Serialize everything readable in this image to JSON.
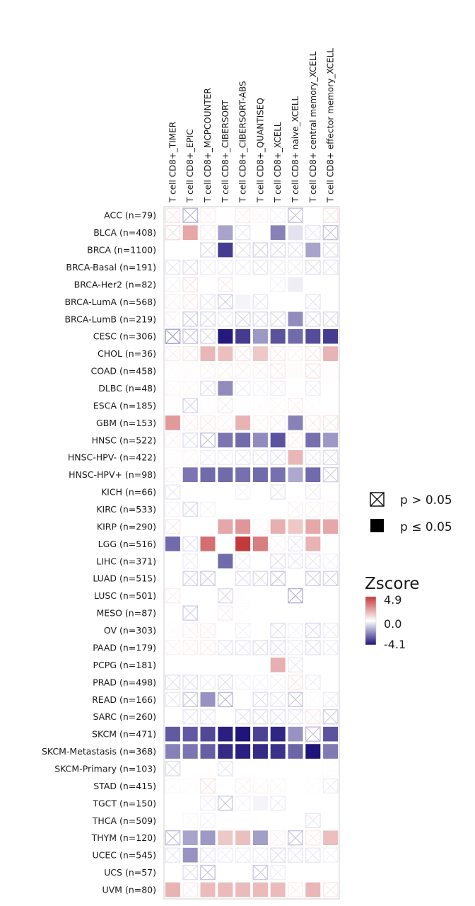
{
  "chart_data": {
    "type": "heatmap",
    "columns": [
      "T cell CD8+_TIMER",
      "T cell CD8+_EPIC",
      "T cell CD8+_MCPCOUNTER",
      "T cell CD8+_CIBERSORT",
      "T cell CD8+_CIBERSORT-ABS",
      "T cell CD8+_QUANTISEQ",
      "T cell CD8+_XCELL",
      "T cell CD8+ naive_XCELL",
      "T cell CD8+ central memory_XCELL",
      "T cell CD8+ effector memory_XCELL"
    ],
    "rows": [
      "ACC (n=79)",
      "BLCA (n=408)",
      "BRCA (n=1100)",
      "BRCA-Basal (n=191)",
      "BRCA-Her2 (n=82)",
      "BRCA-LumA (n=568)",
      "BRCA-LumB (n=219)",
      "CESC (n=306)",
      "CHOL (n=36)",
      "COAD (n=458)",
      "DLBC (n=48)",
      "ESCA (n=185)",
      "GBM (n=153)",
      "HNSC (n=522)",
      "HNSC-HPV- (n=422)",
      "HNSC-HPV+ (n=98)",
      "KICH (n=66)",
      "KIRC (n=533)",
      "KIRP (n=290)",
      "LGG (n=516)",
      "LIHC (n=371)",
      "LUAD (n=515)",
      "LUSC (n=501)",
      "MESO (n=87)",
      "OV (n=303)",
      "PAAD (n=179)",
      "PCPG (n=181)",
      "PRAD (n=498)",
      "READ (n=166)",
      "SARC (n=260)",
      "SKCM (n=471)",
      "SKCM-Metastasis (n=368)",
      "SKCM-Primary (n=103)",
      "STAD (n=415)",
      "TGCT (n=150)",
      "THCA (n=509)",
      "THYM (n=120)",
      "UCEC (n=545)",
      "UCS (n=57)",
      "UVM (n=80)"
    ],
    "zscore": [
      [
        0.6,
        -1.2,
        0.3,
        0.0,
        0.4,
        0.2,
        -0.2,
        -1.0,
        0.0,
        0.6
      ],
      [
        0.8,
        2.2,
        0.4,
        -1.6,
        -0.4,
        0.0,
        -2.2,
        -0.5,
        -0.4,
        -1.0
      ],
      [
        0.0,
        0.0,
        -0.6,
        -3.4,
        -0.5,
        -0.7,
        -0.6,
        -0.5,
        -1.6,
        -0.5
      ],
      [
        -0.4,
        -0.5,
        -0.3,
        -0.3,
        -0.3,
        -0.4,
        -0.3,
        -0.3,
        -0.5,
        -0.4
      ],
      [
        -0.2,
        0.6,
        0.0,
        0.5,
        0.0,
        0.0,
        -0.2,
        -0.3,
        0.0,
        0.0
      ],
      [
        0.3,
        0.5,
        -0.4,
        -0.8,
        -0.2,
        -0.4,
        0.0,
        0.0,
        -0.4,
        0.0
      ],
      [
        0.3,
        -0.8,
        -0.6,
        -0.4,
        -0.7,
        -0.6,
        -0.6,
        -2.0,
        -0.6,
        -0.6
      ],
      [
        -1.6,
        -0.9,
        -0.6,
        -4.0,
        -3.4,
        -1.8,
        -3.0,
        -2.6,
        -3.1,
        -3.4
      ],
      [
        0.4,
        0.5,
        1.8,
        1.6,
        0.6,
        1.4,
        0.5,
        0.3,
        0.6,
        1.9
      ],
      [
        0.1,
        0.1,
        0.3,
        0.3,
        0.3,
        0.3,
        0.5,
        0.1,
        0.6,
        0.1
      ],
      [
        0.2,
        0.2,
        -0.5,
        -2.0,
        -0.3,
        -0.2,
        -0.3,
        0.0,
        -0.3,
        0.0
      ],
      [
        0.0,
        -0.7,
        0.1,
        -0.3,
        0.1,
        0.1,
        0.2,
        0.4,
        0.1,
        0.0
      ],
      [
        2.5,
        0.4,
        0.5,
        0.3,
        1.9,
        0.3,
        0.4,
        -2.2,
        0.5,
        0.6
      ],
      [
        0.3,
        -0.5,
        -1.0,
        -2.4,
        -2.6,
        -2.0,
        -3.0,
        0.4,
        -2.5,
        -1.8
      ],
      [
        0.1,
        0.2,
        -0.3,
        -0.3,
        -0.4,
        -0.4,
        -0.5,
        1.8,
        -0.4,
        -0.6
      ],
      [
        0.3,
        -2.4,
        -2.6,
        -2.6,
        -2.5,
        -2.6,
        -2.5,
        -1.5,
        -2.6,
        -0.8
      ],
      [
        -0.4,
        0.0,
        0.0,
        0.0,
        -0.2,
        0.0,
        -0.4,
        0.0,
        -0.3,
        0.0
      ],
      [
        -0.2,
        -0.6,
        -0.2,
        0.0,
        0.0,
        0.0,
        0.0,
        0.3,
        0.3,
        0.2
      ],
      [
        0.5,
        0.0,
        0.0,
        2.2,
        2.6,
        0.2,
        2.0,
        1.4,
        2.2,
        2.2
      ],
      [
        -2.6,
        -0.5,
        3.6,
        0.0,
        4.9,
        3.2,
        0.3,
        -0.4,
        1.9,
        0.0
      ],
      [
        0.0,
        -0.3,
        0.0,
        -2.6,
        -0.3,
        0.0,
        -0.5,
        -0.4,
        -0.4,
        -0.2
      ],
      [
        0.0,
        -0.7,
        -0.8,
        0.0,
        -0.5,
        -0.6,
        -0.9,
        0.0,
        -0.8,
        -0.7
      ],
      [
        0.4,
        0.0,
        0.0,
        -0.6,
        0.1,
        0.0,
        0.0,
        -1.3,
        0.0,
        0.0
      ],
      [
        0.0,
        -0.8,
        0.0,
        0.4,
        0.1,
        0.0,
        0.0,
        0.0,
        0.0,
        0.0
      ],
      [
        0.1,
        0.3,
        0.4,
        0.0,
        -0.2,
        0.0,
        -0.5,
        -0.2,
        -0.6,
        -0.3
      ],
      [
        0.3,
        0.4,
        0.4,
        -0.4,
        -0.4,
        -0.5,
        -0.5,
        -0.3,
        -0.5,
        -0.3
      ],
      [
        0.0,
        0.0,
        0.0,
        0.0,
        0.0,
        0.0,
        2.0,
        -0.4,
        0.0,
        0.0
      ],
      [
        -0.5,
        -0.5,
        -0.3,
        -0.5,
        -0.2,
        -0.2,
        -0.2,
        0.6,
        -0.3,
        0.0
      ],
      [
        -0.4,
        -0.9,
        -1.9,
        -1.2,
        0.0,
        -0.5,
        -0.4,
        -0.9,
        -0.1,
        -0.3
      ],
      [
        0.0,
        -0.4,
        -0.4,
        0.0,
        -0.5,
        -0.5,
        -0.5,
        -0.4,
        0.5,
        -0.8
      ],
      [
        -2.9,
        -2.9,
        -3.2,
        -3.9,
        -4.1,
        -3.3,
        -3.8,
        -1.9,
        -1.1,
        -3.0
      ],
      [
        -2.2,
        -2.4,
        -2.8,
        -3.7,
        -3.9,
        -3.7,
        -3.6,
        -2.7,
        -4.1,
        -2.3
      ],
      [
        -0.6,
        0.0,
        0.0,
        -0.4,
        0.0,
        0.0,
        0.0,
        0.0,
        0.0,
        0.1
      ],
      [
        0.2,
        0.1,
        0.6,
        0.0,
        0.3,
        0.2,
        0.2,
        0.0,
        0.1,
        -0.3
      ],
      [
        0.0,
        0.0,
        -0.3,
        -0.9,
        -0.2,
        -0.2,
        -0.3,
        0.0,
        0.0,
        0.0
      ],
      [
        0.0,
        0.2,
        -0.2,
        0.0,
        0.0,
        0.0,
        0.0,
        0.0,
        -0.4,
        0.0
      ],
      [
        -1.1,
        -1.6,
        -1.8,
        1.4,
        1.6,
        -1.7,
        0.3,
        -1.0,
        0.5,
        1.6
      ],
      [
        -0.4,
        -1.9,
        -0.4,
        -0.3,
        -0.3,
        -0.3,
        -0.5,
        -0.4,
        -0.4,
        -0.2
      ],
      [
        0.0,
        -0.5,
        -1.0,
        0.0,
        0.0,
        -0.9,
        -0.3,
        0.0,
        0.0,
        0.0
      ],
      [
        1.9,
        0.4,
        1.7,
        1.7,
        1.7,
        1.7,
        1.7,
        0.4,
        1.8,
        0.5
      ]
    ],
    "not_significant": [
      [
        1,
        1,
        1,
        0,
        1,
        1,
        1,
        1,
        0,
        1
      ],
      [
        1,
        0,
        1,
        0,
        1,
        0,
        0,
        0,
        1,
        1
      ],
      [
        0,
        0,
        1,
        0,
        1,
        1,
        1,
        1,
        0,
        1
      ],
      [
        1,
        1,
        1,
        1,
        1,
        1,
        1,
        1,
        1,
        1
      ],
      [
        1,
        1,
        0,
        1,
        0,
        0,
        1,
        0,
        0,
        0
      ],
      [
        1,
        1,
        1,
        1,
        0,
        1,
        0,
        0,
        1,
        0
      ],
      [
        1,
        1,
        1,
        1,
        1,
        1,
        1,
        0,
        1,
        1
      ],
      [
        1,
        1,
        1,
        0,
        0,
        0,
        0,
        0,
        0,
        0
      ],
      [
        1,
        1,
        0,
        0,
        1,
        0,
        1,
        1,
        1,
        0
      ],
      [
        1,
        1,
        1,
        1,
        1,
        1,
        1,
        0,
        1,
        1
      ],
      [
        1,
        1,
        1,
        0,
        1,
        1,
        1,
        0,
        1,
        0
      ],
      [
        0,
        1,
        1,
        1,
        1,
        1,
        1,
        1,
        1,
        0
      ],
      [
        0,
        1,
        1,
        1,
        0,
        1,
        1,
        0,
        1,
        1
      ],
      [
        1,
        1,
        1,
        0,
        0,
        0,
        0,
        1,
        0,
        0
      ],
      [
        1,
        1,
        1,
        1,
        1,
        1,
        1,
        0,
        1,
        1
      ],
      [
        1,
        0,
        0,
        0,
        0,
        0,
        0,
        0,
        0,
        1
      ],
      [
        1,
        0,
        0,
        0,
        1,
        0,
        1,
        0,
        1,
        0
      ],
      [
        1,
        1,
        1,
        0,
        0,
        0,
        0,
        1,
        1,
        1
      ],
      [
        1,
        0,
        0,
        0,
        0,
        1,
        0,
        0,
        0,
        0
      ],
      [
        0,
        1,
        0,
        0,
        0,
        0,
        1,
        1,
        0,
        0
      ],
      [
        0,
        1,
        0,
        0,
        1,
        0,
        1,
        1,
        1,
        1
      ],
      [
        0,
        1,
        1,
        0,
        1,
        1,
        1,
        0,
        1,
        1
      ],
      [
        1,
        0,
        0,
        1,
        1,
        0,
        0,
        1,
        0,
        0
      ],
      [
        0,
        1,
        0,
        1,
        1,
        0,
        0,
        0,
        0,
        0
      ],
      [
        1,
        1,
        1,
        0,
        1,
        0,
        1,
        1,
        1,
        1
      ],
      [
        1,
        1,
        1,
        1,
        1,
        1,
        1,
        1,
        1,
        1
      ],
      [
        0,
        0,
        0,
        0,
        0,
        0,
        0,
        1,
        0,
        0
      ],
      [
        1,
        1,
        1,
        1,
        1,
        1,
        1,
        1,
        1,
        0
      ],
      [
        1,
        1,
        0,
        1,
        0,
        1,
        1,
        1,
        1,
        1
      ],
      [
        0,
        1,
        1,
        0,
        1,
        1,
        1,
        1,
        1,
        1
      ],
      [
        0,
        0,
        0,
        0,
        0,
        0,
        0,
        0,
        1,
        0
      ],
      [
        0,
        0,
        0,
        0,
        0,
        0,
        0,
        0,
        0,
        0
      ],
      [
        1,
        0,
        0,
        1,
        0,
        0,
        0,
        0,
        0,
        1
      ],
      [
        1,
        1,
        1,
        0,
        1,
        1,
        1,
        0,
        1,
        1
      ],
      [
        0,
        0,
        1,
        1,
        1,
        0,
        1,
        0,
        0,
        0
      ],
      [
        0,
        1,
        1,
        0,
        0,
        0,
        0,
        0,
        1,
        0
      ],
      [
        1,
        0,
        0,
        0,
        0,
        0,
        1,
        1,
        1,
        0
      ],
      [
        1,
        0,
        1,
        1,
        1,
        1,
        1,
        1,
        1,
        1
      ],
      [
        0,
        1,
        1,
        0,
        0,
        1,
        1,
        0,
        0,
        0
      ],
      [
        0,
        1,
        0,
        0,
        0,
        0,
        0,
        1,
        0,
        1
      ]
    ],
    "legend": {
      "items": [
        "p > 0.05",
        "p ≤ 0.05"
      ],
      "colorbar_title": "Zscore",
      "colorbar_ticks": [
        "4.9",
        "0.0",
        "-4.1"
      ],
      "zmin": -4.1,
      "zmax": 4.9
    },
    "colors": {
      "high": "#c43a3c",
      "mid": "#ffffff",
      "low": "#1f147a"
    }
  }
}
